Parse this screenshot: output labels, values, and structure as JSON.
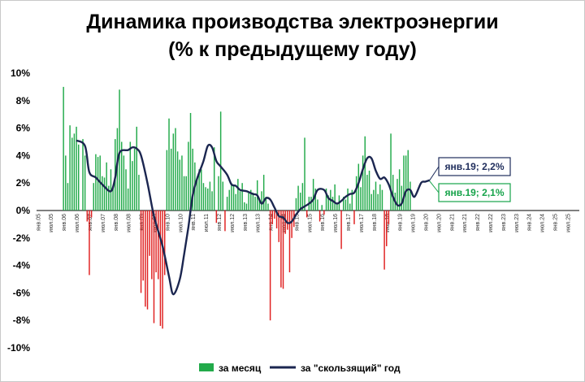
{
  "chart_data": {
    "type": "bar",
    "title": [
      "Динамика производства электроэнергии",
      "(% к предыдущему году)"
    ],
    "xlabel": "",
    "ylabel": "",
    "ylim": [
      -10,
      10
    ],
    "y_ticks": [
      "10%",
      "8%",
      "6%",
      "4%",
      "2%",
      "0%",
      "-2%",
      "-4%",
      "-6%",
      "-8%",
      "-10%"
    ],
    "x_tick_labels": [
      "янв.05",
      "июл.05",
      "янв.06",
      "июл.06",
      "янв.07",
      "июл.07",
      "янв.08",
      "июл.08",
      "янв.09",
      "июл.09",
      "янв.10",
      "июл.10",
      "янв.11",
      "июл.11",
      "янв.12",
      "июл.12",
      "янв.13",
      "июл.13",
      "янв.14",
      "июл.14",
      "янв.15",
      "июл.15",
      "янв.16",
      "июл.16",
      "янв.17",
      "июл.17",
      "янв.18",
      "июл.18",
      "янв.19",
      "июл.19",
      "янв.20",
      "июл.20",
      "янв.21",
      "июл.21",
      "янв.22",
      "июл.22",
      "янв.23",
      "июл.23",
      "янв.24",
      "июл.24",
      "янв.25",
      "июл.25"
    ],
    "series": [
      {
        "name": "за месяц",
        "kind": "bar",
        "start": "янв.06",
        "values": [
          9.0,
          4.0,
          2.0,
          6.2,
          5.3,
          5.6,
          6.1,
          4.8,
          0.0,
          5.2,
          4.0,
          -0.8,
          -4.7,
          -0.5,
          2.0,
          4.1,
          3.9,
          4.0,
          2.5,
          2.4,
          3.5,
          1.8,
          3.0,
          1.6,
          5.2,
          6.0,
          8.8,
          5.0,
          4.0,
          3.0,
          1.6,
          5.0,
          3.6,
          4.5,
          6.1,
          2.6,
          -6.0,
          -5.1,
          -7.0,
          -7.2,
          -3.3,
          -5.0,
          -8.2,
          -4.5,
          -5.0,
          -8.4,
          -8.6,
          -4.7,
          4.4,
          6.7,
          4.5,
          5.6,
          6.0,
          4.3,
          3.7,
          4.0,
          2.5,
          2.5,
          5.0,
          7.1,
          4.5,
          3.5,
          2.3,
          3.0,
          3.0,
          2.0,
          1.7,
          1.6,
          2.1,
          1.4,
          4.6,
          -0.9,
          2.5,
          7.2,
          2.1,
          -1.5,
          1.0,
          1.5,
          2.0,
          1.8,
          1.2,
          2.3,
          1.4,
          2.0,
          0.6,
          0.5,
          1.3,
          1.5,
          1.3,
          1.0,
          2.2,
          0.7,
          1.4,
          2.6,
          1.0,
          0.5,
          -8.0,
          -1.0,
          -0.6,
          -1.3,
          -2.3,
          -5.6,
          -5.7,
          -1.7,
          -1.4,
          -4.5,
          -2.0,
          -1.2,
          0.9,
          1.8,
          1.3,
          2.0,
          5.3,
          -0.5,
          1.0,
          1.0,
          2.3,
          1.6,
          0.8,
          -0.8,
          0.4,
          -0.3,
          1.6,
          1.1,
          1.5,
          1.0,
          1.9,
          0.5,
          1.1,
          -2.8,
          1.0,
          0.8,
          1.6,
          0.5,
          1.5,
          -1.0,
          2.5,
          3.4,
          1.7,
          4.0,
          5.4,
          2.6,
          2.9,
          1.2,
          1.5,
          2.1,
          1.2,
          1.9,
          1.5,
          -4.3,
          -2.6,
          -1.0,
          5.6,
          2.6,
          1.3,
          2.3,
          3.0,
          1.8,
          4.0,
          4.0,
          4.4,
          2.1
        ]
      },
      {
        "name": "за \"скользящий\" год",
        "kind": "line",
        "start": "июл.06",
        "points": [
          [
            0,
            5.1
          ],
          [
            4,
            4.7
          ],
          [
            6,
            2.8
          ],
          [
            9,
            2.4
          ],
          [
            12,
            1.9
          ],
          [
            16,
            1.4
          ],
          [
            18,
            2.4
          ],
          [
            20,
            4.2
          ],
          [
            24,
            4.4
          ],
          [
            26,
            4.6
          ],
          [
            28,
            4.5
          ],
          [
            30,
            4.0
          ],
          [
            33,
            2.0
          ],
          [
            36,
            -0.4
          ],
          [
            40,
            -2.6
          ],
          [
            43,
            -4.8
          ],
          [
            45,
            -6.1
          ],
          [
            48,
            -5.0
          ],
          [
            50,
            -3.2
          ],
          [
            52,
            -1.2
          ],
          [
            54,
            1.1
          ],
          [
            56,
            2.3
          ],
          [
            59,
            3.6
          ],
          [
            61,
            4.7
          ],
          [
            63,
            4.6
          ],
          [
            65,
            3.6
          ],
          [
            67,
            3.2
          ],
          [
            70,
            2.6
          ],
          [
            72,
            1.9
          ],
          [
            74,
            1.8
          ],
          [
            76,
            1.5
          ],
          [
            79,
            1.4
          ],
          [
            82,
            1.2
          ],
          [
            84,
            1.1
          ],
          [
            86,
            0.5
          ],
          [
            88,
            0.9
          ],
          [
            90,
            0.8
          ],
          [
            92,
            0.2
          ],
          [
            94,
            -0.4
          ],
          [
            96,
            -0.5
          ],
          [
            98,
            -0.9
          ],
          [
            100,
            -0.8
          ],
          [
            102,
            -0.3
          ],
          [
            104,
            0.1
          ],
          [
            106,
            0.3
          ],
          [
            108,
            0.5
          ],
          [
            110,
            0.8
          ],
          [
            112,
            1.5
          ],
          [
            115,
            1.5
          ],
          [
            117,
            0.9
          ],
          [
            119,
            0.7
          ],
          [
            121,
            0.5
          ],
          [
            123,
            0.7
          ],
          [
            125,
            1.0
          ],
          [
            127,
            1.2
          ],
          [
            129,
            1.3
          ],
          [
            131,
            2.0
          ],
          [
            133,
            3.0
          ],
          [
            135,
            3.8
          ],
          [
            137,
            3.8
          ],
          [
            139,
            2.9
          ],
          [
            141,
            2.3
          ],
          [
            143,
            2.4
          ],
          [
            145,
            1.9
          ],
          [
            147,
            1.0
          ],
          [
            149,
            0.4
          ],
          [
            151,
            0.5
          ],
          [
            153,
            1.4
          ],
          [
            155,
            1.5
          ],
          [
            157,
            1.0
          ],
          [
            160,
            2.0
          ],
          [
            162,
            2.1
          ],
          [
            164,
            2.2
          ]
        ]
      }
    ],
    "annotations": [
      {
        "text": "янв.19; 2,2%",
        "color": "#1f2d5c"
      },
      {
        "text": "янв.19; 2,1%",
        "color": "#16a34a"
      }
    ],
    "colors": {
      "bar_up": "#22aa4a",
      "bar_down": "#e02020",
      "line": "#1b2650"
    },
    "grid": false,
    "legend_position": "bottom"
  }
}
